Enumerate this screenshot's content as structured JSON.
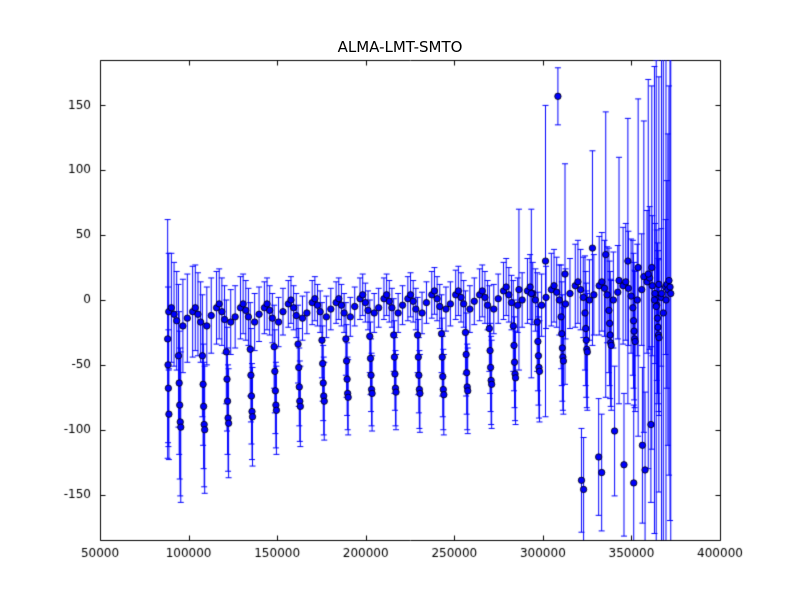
{
  "figure": {
    "background": "#ffffff"
  },
  "chart_data": {
    "type": "scatter",
    "title": "ALMA-LMT-SMTO",
    "xlabel": "",
    "ylabel": "",
    "xlim": [
      50000,
      400000
    ],
    "ylim": [
      -185,
      185
    ],
    "xticks": [
      50000,
      100000,
      150000,
      200000,
      250000,
      300000,
      350000,
      400000
    ],
    "yticks": [
      -150,
      -100,
      -50,
      0,
      50,
      100,
      150
    ],
    "grid": false,
    "legend": null,
    "axis_color": "#000000",
    "errorbar_color": "#0000ff",
    "marker": {
      "shape": "circle",
      "face_color": "#0000ff",
      "edge_color": "#000000",
      "size": 3.2
    },
    "point_format": [
      "x",
      "y",
      "yerr"
    ],
    "points": [
      [
        88800,
        -9,
        45
      ],
      [
        90300,
        -6,
        42
      ],
      [
        91800,
        -11,
        40
      ],
      [
        93300,
        -16,
        38
      ],
      [
        96800,
        -20,
        36
      ],
      [
        99300,
        -14,
        34
      ],
      [
        94300,
        -43,
        55
      ],
      [
        94700,
        -64,
        55
      ],
      [
        95000,
        -81,
        57
      ],
      [
        95300,
        -94,
        57
      ],
      [
        95600,
        -98,
        58
      ],
      [
        102300,
        -9,
        35
      ],
      [
        103800,
        -6,
        33
      ],
      [
        105300,
        -11,
        32
      ],
      [
        106800,
        -17,
        31
      ],
      [
        110300,
        -20,
        30
      ],
      [
        112800,
        -12,
        29
      ],
      [
        107800,
        -43,
        47
      ],
      [
        108200,
        -65,
        47
      ],
      [
        108500,
        -82,
        48
      ],
      [
        108800,
        -96,
        48
      ],
      [
        109100,
        -100,
        49
      ],
      [
        115800,
        -6,
        28
      ],
      [
        117300,
        -3,
        27
      ],
      [
        118800,
        -9,
        26
      ],
      [
        120300,
        -15,
        26
      ],
      [
        123800,
        -17,
        25
      ],
      [
        126300,
        -13,
        24
      ],
      [
        121300,
        -40,
        40
      ],
      [
        121700,
        -61,
        40
      ],
      [
        122000,
        -78,
        41
      ],
      [
        122300,
        -91,
        41
      ],
      [
        122600,
        -95,
        42
      ],
      [
        129300,
        -6,
        24
      ],
      [
        130800,
        -3,
        23
      ],
      [
        132300,
        -8,
        23
      ],
      [
        133800,
        -13,
        22
      ],
      [
        137300,
        -17,
        22
      ],
      [
        139800,
        -11,
        21
      ],
      [
        134800,
        -38,
        36
      ],
      [
        135200,
        -58,
        36
      ],
      [
        135500,
        -74,
        37
      ],
      [
        135800,
        -86,
        37
      ],
      [
        136100,
        -90,
        38
      ],
      [
        142800,
        -6,
        20
      ],
      [
        144300,
        -3,
        20
      ],
      [
        145800,
        -8,
        19
      ],
      [
        147300,
        -14,
        19
      ],
      [
        150800,
        -17,
        19
      ],
      [
        153300,
        -9,
        18
      ],
      [
        148300,
        -36,
        32
      ],
      [
        148700,
        -55,
        32
      ],
      [
        149000,
        -70,
        33
      ],
      [
        149300,
        -81,
        33
      ],
      [
        149600,
        -85,
        34
      ],
      [
        156300,
        -3,
        18
      ],
      [
        157800,
        0,
        18
      ],
      [
        159300,
        -6,
        17
      ],
      [
        160800,
        -12,
        17
      ],
      [
        164300,
        -14,
        17
      ],
      [
        166800,
        -10,
        16
      ],
      [
        161800,
        -34,
        30
      ],
      [
        162200,
        -52,
        30
      ],
      [
        162500,
        -67,
        30
      ],
      [
        162800,
        -78,
        31
      ],
      [
        163100,
        -82,
        31
      ],
      [
        169800,
        -2,
        17
      ],
      [
        171300,
        1,
        17
      ],
      [
        172800,
        -4,
        16
      ],
      [
        174300,
        -9,
        16
      ],
      [
        177800,
        -13,
        16
      ],
      [
        180300,
        -7,
        16
      ],
      [
        175300,
        -31,
        29
      ],
      [
        175700,
        -49,
        29
      ],
      [
        176000,
        -64,
        29
      ],
      [
        176300,
        -74,
        30
      ],
      [
        176600,
        -78,
        30
      ],
      [
        183300,
        -2,
        16
      ],
      [
        184800,
        1,
        16
      ],
      [
        186300,
        -4,
        16
      ],
      [
        187800,
        -10,
        15
      ],
      [
        191300,
        -13,
        15
      ],
      [
        193800,
        -5,
        15
      ],
      [
        188800,
        -30,
        28
      ],
      [
        189200,
        -47,
        28
      ],
      [
        189500,
        -61,
        28
      ],
      [
        189800,
        -72,
        28
      ],
      [
        190100,
        -75,
        29
      ],
      [
        196800,
        1,
        16
      ],
      [
        198300,
        4,
        16
      ],
      [
        199800,
        -2,
        15
      ],
      [
        201300,
        -8,
        15
      ],
      [
        204800,
        -10,
        15
      ],
      [
        207300,
        -6,
        15
      ],
      [
        202300,
        -28,
        28
      ],
      [
        202700,
        -45,
        28
      ],
      [
        203000,
        -58,
        28
      ],
      [
        203300,
        -69,
        28
      ],
      [
        203600,
        -72,
        29
      ],
      [
        210300,
        1,
        16
      ],
      [
        211800,
        4,
        16
      ],
      [
        213300,
        -1,
        16
      ],
      [
        214800,
        -6,
        15
      ],
      [
        218300,
        -10,
        15
      ],
      [
        220800,
        -4,
        15
      ],
      [
        215800,
        -27,
        28
      ],
      [
        216200,
        -44,
        28
      ],
      [
        216500,
        -57,
        28
      ],
      [
        216800,
        -68,
        29
      ],
      [
        217100,
        -71,
        29
      ],
      [
        223800,
        1,
        17
      ],
      [
        225300,
        4,
        17
      ],
      [
        226800,
        -1,
        16
      ],
      [
        228300,
        -7,
        16
      ],
      [
        231800,
        -10,
        16
      ],
      [
        234300,
        -2,
        16
      ],
      [
        229300,
        -27,
        29
      ],
      [
        229700,
        -44,
        29
      ],
      [
        230000,
        -58,
        29
      ],
      [
        230300,
        -69,
        30
      ],
      [
        230600,
        -72,
        30
      ],
      [
        237300,
        4,
        18
      ],
      [
        238800,
        7,
        18
      ],
      [
        240300,
        1,
        17
      ],
      [
        241800,
        -5,
        17
      ],
      [
        245300,
        -7,
        17
      ],
      [
        247800,
        -3,
        17
      ],
      [
        242800,
        -26,
        30
      ],
      [
        243200,
        -44,
        30
      ],
      [
        243500,
        -59,
        31
      ],
      [
        243800,
        -69,
        31
      ],
      [
        244100,
        -73,
        31
      ],
      [
        250800,
        4,
        19
      ],
      [
        252300,
        7,
        19
      ],
      [
        253800,
        2,
        19
      ],
      [
        255300,
        -3,
        18
      ],
      [
        258800,
        -7,
        18
      ],
      [
        261300,
        -1,
        18
      ],
      [
        256300,
        -25,
        32
      ],
      [
        256700,
        -42,
        32
      ],
      [
        257000,
        -56,
        32
      ],
      [
        257300,
        -67,
        33
      ],
      [
        257600,
        -70,
        33
      ],
      [
        264300,
        4,
        20
      ],
      [
        265800,
        7,
        20
      ],
      [
        267300,
        2,
        20
      ],
      [
        268800,
        -4,
        19
      ],
      [
        272300,
        -7,
        19
      ],
      [
        274800,
        1,
        19
      ],
      [
        269800,
        -22,
        33
      ],
      [
        270200,
        -39,
        33
      ],
      [
        270500,
        -52,
        34
      ],
      [
        270800,
        -62,
        34
      ],
      [
        271100,
        -65,
        34
      ],
      [
        277800,
        7,
        22
      ],
      [
        279300,
        10,
        22
      ],
      [
        280800,
        4,
        21
      ],
      [
        282300,
        -2,
        21
      ],
      [
        285800,
        -4,
        21
      ],
      [
        288300,
        0,
        21
      ],
      [
        283300,
        -20,
        35
      ],
      [
        283700,
        -35,
        35
      ],
      [
        284000,
        -48,
        35
      ],
      [
        284300,
        -57,
        36
      ],
      [
        284600,
        -60,
        36
      ],
      [
        291300,
        7,
        25
      ],
      [
        292800,
        10,
        25
      ],
      [
        294300,
        5,
        24
      ],
      [
        295800,
        0,
        24
      ],
      [
        299300,
        -4,
        24
      ],
      [
        301800,
        2,
        24
      ],
      [
        296800,
        -17,
        38
      ],
      [
        297200,
        -32,
        38
      ],
      [
        297500,
        -43,
        38
      ],
      [
        297800,
        -52,
        39
      ],
      [
        298100,
        -55,
        39
      ],
      [
        304800,
        8,
        28
      ],
      [
        306300,
        11,
        28
      ],
      [
        307800,
        6,
        27
      ],
      [
        309300,
        0,
        27
      ],
      [
        312800,
        -3,
        27
      ],
      [
        315300,
        5,
        27
      ],
      [
        310300,
        -13,
        40
      ],
      [
        310700,
        -26,
        40
      ],
      [
        311000,
        -37,
        41
      ],
      [
        311300,
        -44,
        41
      ],
      [
        311600,
        -47,
        41
      ],
      [
        318300,
        11,
        32
      ],
      [
        319800,
        14,
        32
      ],
      [
        321300,
        8,
        31
      ],
      [
        322800,
        2,
        31
      ],
      [
        326300,
        0,
        31
      ],
      [
        328800,
        4,
        31
      ],
      [
        323800,
        -10,
        44
      ],
      [
        324200,
        -22,
        44
      ],
      [
        324500,
        -31,
        44
      ],
      [
        324800,
        -38,
        45
      ],
      [
        325100,
        -40,
        45
      ],
      [
        331800,
        11,
        38
      ],
      [
        333300,
        14,
        38
      ],
      [
        334800,
        9,
        37
      ],
      [
        336300,
        4,
        37
      ],
      [
        339800,
        0,
        37
      ],
      [
        342300,
        6,
        36
      ],
      [
        337300,
        -8,
        48
      ],
      [
        337700,
        -18,
        48
      ],
      [
        338000,
        -27,
        49
      ],
      [
        338300,
        -33,
        49
      ],
      [
        338600,
        -35,
        50
      ],
      [
        345300,
        11,
        45
      ],
      [
        346800,
        14,
        45
      ],
      [
        348300,
        9,
        44
      ],
      [
        349800,
        3,
        44
      ],
      [
        353300,
        0,
        43
      ],
      [
        355800,
        8,
        43
      ],
      [
        350800,
        -6,
        52
      ],
      [
        351200,
        -16,
        52
      ],
      [
        351500,
        -24,
        53
      ],
      [
        351800,
        -30,
        53
      ],
      [
        352100,
        -32,
        54
      ],
      [
        358800,
        14,
        55
      ],
      [
        360300,
        17,
        55
      ],
      [
        361800,
        11,
        54
      ],
      [
        363300,
        5,
        54
      ],
      [
        366800,
        2,
        53
      ],
      [
        369300,
        10,
        52
      ],
      [
        364300,
        -4,
        58
      ],
      [
        364700,
        -14,
        58
      ],
      [
        365000,
        -21,
        59
      ],
      [
        365300,
        -27,
        59
      ],
      [
        365600,
        -29,
        60
      ],
      [
        370000,
        12,
        80
      ],
      [
        370600,
        8,
        120
      ],
      [
        371200,
        15,
        150
      ],
      [
        371800,
        10,
        180
      ],
      [
        372200,
        5,
        210
      ],
      [
        88200,
        -30,
        92
      ],
      [
        88400,
        -50,
        60
      ],
      [
        88600,
        -68,
        45
      ],
      [
        88900,
        -88,
        35
      ],
      [
        308500,
        157,
        22
      ],
      [
        301500,
        30,
        120
      ],
      [
        293500,
        5,
        65
      ],
      [
        286500,
        8,
        62
      ],
      [
        312500,
        20,
        85
      ],
      [
        328000,
        40,
        75
      ],
      [
        335500,
        35,
        110
      ],
      [
        343000,
        15,
        95
      ],
      [
        348000,
        30,
        110
      ],
      [
        353800,
        25,
        130
      ],
      [
        357000,
        18,
        120
      ],
      [
        359500,
        20,
        150
      ],
      [
        361500,
        25,
        140
      ],
      [
        365500,
        12,
        160
      ],
      [
        321800,
        -139,
        40
      ],
      [
        323000,
        -146,
        40
      ],
      [
        331500,
        -121,
        45
      ],
      [
        333200,
        -133,
        45
      ],
      [
        340500,
        -101,
        50
      ],
      [
        345800,
        -127,
        55
      ],
      [
        351300,
        -141,
        60
      ],
      [
        356200,
        -112,
        60
      ],
      [
        357700,
        -131,
        60
      ],
      [
        361000,
        -96,
        60
      ],
      [
        363000,
        0,
        180
      ],
      [
        364000,
        -5,
        190
      ],
      [
        367000,
        5,
        200
      ],
      [
        368000,
        -10,
        210
      ],
      [
        369500,
        0,
        220
      ]
    ]
  }
}
